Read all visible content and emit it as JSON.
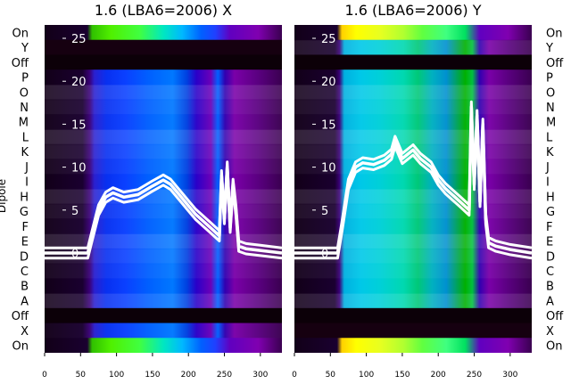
{
  "chart_data": [
    {
      "type": "heatmap",
      "title": "1.6 (LBA6=2006) X",
      "ylabel": "Dipole",
      "row_labels": [
        "On",
        "Y",
        "Off",
        "P",
        "O",
        "N",
        "M",
        "L",
        "K",
        "J",
        "I",
        "H",
        "G",
        "F",
        "E",
        "D",
        "C",
        "B",
        "A",
        "Off",
        "X",
        "On"
      ],
      "xlim": [
        0,
        330
      ],
      "x_ticks": [
        0,
        50,
        100,
        150,
        200,
        250,
        300
      ],
      "overlay_y_ticks": [
        0,
        5,
        10,
        15,
        20,
        25
      ],
      "overlay_line": {
        "x": [
          0,
          60,
          66,
          75,
          85,
          95,
          110,
          130,
          150,
          165,
          175,
          190,
          200,
          210,
          230,
          243,
          246,
          250,
          254,
          258,
          262,
          266,
          270,
          280,
          300,
          330
        ],
        "y": [
          0,
          0,
          2,
          5,
          6.5,
          7,
          6.5,
          6.8,
          7.8,
          8.5,
          8,
          6.5,
          5.5,
          4.5,
          3,
          2,
          9,
          4,
          10,
          3,
          8,
          5,
          0.8,
          0.5,
          0.3,
          0
        ]
      }
    },
    {
      "type": "heatmap",
      "title": "1.6 (LBA6=2006) Y",
      "row_labels": [
        "On",
        "Y",
        "Off",
        "P",
        "O",
        "N",
        "M",
        "L",
        "K",
        "J",
        "I",
        "H",
        "G",
        "F",
        "E",
        "D",
        "C",
        "B",
        "A",
        "Off",
        "X",
        "On"
      ],
      "xlim": [
        0,
        330
      ],
      "x_ticks": [
        0,
        50,
        100,
        150,
        200,
        250,
        300
      ],
      "overlay_y_ticks": [
        0,
        5,
        10,
        15,
        20,
        25
      ],
      "overlay_line": {
        "x": [
          0,
          60,
          66,
          75,
          85,
          95,
          110,
          125,
          135,
          140,
          150,
          165,
          175,
          190,
          200,
          210,
          230,
          243,
          246,
          250,
          254,
          258,
          262,
          266,
          270,
          280,
          300,
          330
        ],
        "y": [
          0,
          0,
          3,
          8,
          10,
          10.5,
          10.3,
          10.8,
          11.5,
          13,
          11,
          12,
          11,
          10,
          8.5,
          7.5,
          6,
          5,
          17,
          8,
          16,
          6,
          15,
          4,
          1.2,
          0.8,
          0.4,
          0
        ]
      }
    }
  ]
}
